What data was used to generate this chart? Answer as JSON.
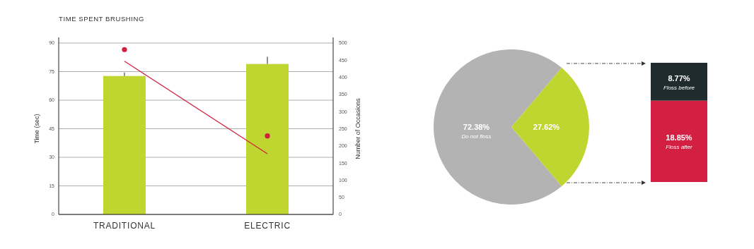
{
  "chart_data": [
    {
      "type": "bar",
      "title": "TIME SPENT BRUSHING",
      "ylabel": "Time (sec)",
      "y2label": "Number of Occasions",
      "categories": [
        "TRADITIONAL",
        "ELECTRIC"
      ],
      "series": [
        {
          "type": "bar",
          "color": "#bfd630",
          "values": [
            72.7,
            79
          ],
          "errors": [
            [
              72.7,
              74.5
            ],
            [
              79,
              82.8
            ]
          ]
        },
        {
          "type": "line",
          "axis": "y2",
          "color": "#d0203f",
          "values": [
            447,
            177
          ]
        },
        {
          "type": "scatter",
          "axis": "y2",
          "color": "#d0203f",
          "marker": "circle",
          "values": [
            481,
            229
          ]
        }
      ],
      "ylim": [
        0,
        90
      ],
      "yticks": [
        0,
        15,
        30,
        45,
        60,
        75,
        90
      ],
      "y2lim": [
        0,
        500
      ],
      "y2ticks": [
        0,
        50,
        100,
        150,
        200,
        250,
        300,
        350,
        400,
        450,
        500
      ],
      "grid": "y"
    },
    {
      "type": "pie",
      "categories": [
        "Do not floss",
        null
      ],
      "values": [
        72.38,
        27.62
      ],
      "colors": [
        "#b3b3b3",
        "#bfd630"
      ],
      "value_labels": [
        "72.38%",
        "27.62%"
      ]
    },
    {
      "type": "bar",
      "stacked": true,
      "categories": [
        null
      ],
      "series": [
        {
          "name": "Floss after",
          "color": "#d21f42",
          "values": [
            18.85
          ],
          "value_labels": [
            "18.85%"
          ]
        },
        {
          "name": "Floss before",
          "color": "#1f2b2d",
          "values": [
            8.77
          ],
          "value_labels": [
            "8.77%"
          ]
        }
      ]
    }
  ]
}
